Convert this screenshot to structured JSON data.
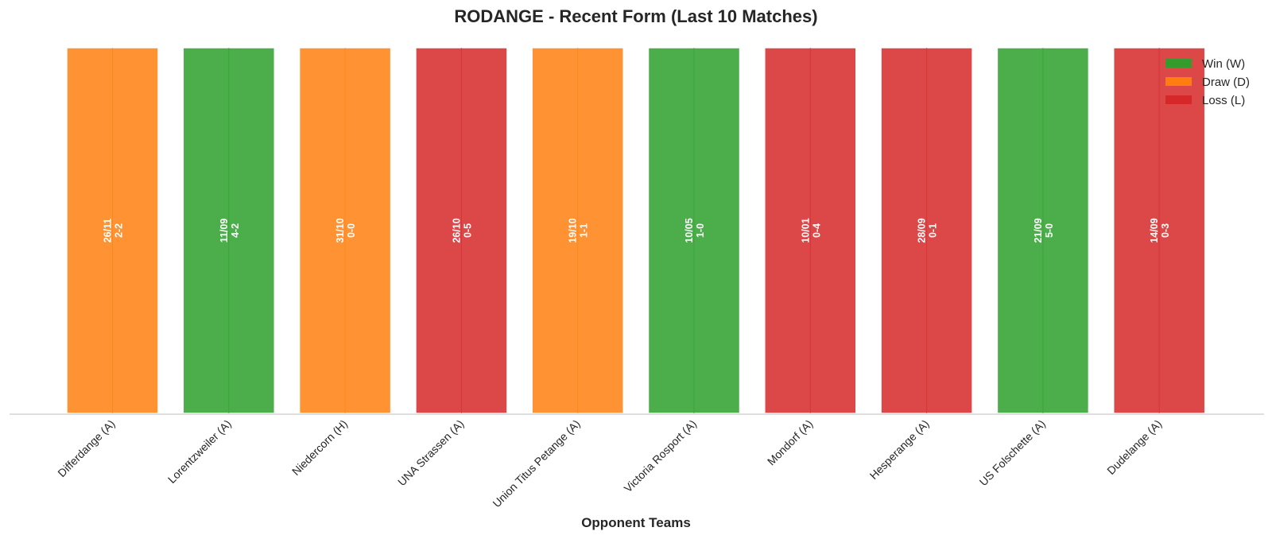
{
  "colors": {
    "W": "#2ca02c",
    "D": "#ff7f0e",
    "L": "#d62728"
  },
  "chart_data": {
    "type": "bar",
    "title": "RODANGE - Recent Form (Last 10 Matches)",
    "xlabel": "Opponent Teams",
    "ylabel": "",
    "ylim": [
      0,
      1
    ],
    "grid": false,
    "legend_position": "top-right",
    "legend": [
      {
        "key": "W",
        "label": "Win (W)"
      },
      {
        "key": "D",
        "label": "Draw (D)"
      },
      {
        "key": "L",
        "label": "Loss (L)"
      }
    ],
    "categories": [
      "Differdange (A)",
      "Lorentzweiler (A)",
      "Niedercorn (H)",
      "UNA Strassen (A)",
      "Union Titus Petange (A)",
      "Victoria Rosport (A)",
      "Mondorf (A)",
      "Hesperange (A)",
      "US Folschette (A)",
      "Dudelange (A)"
    ],
    "values": [
      1,
      1,
      1,
      1,
      1,
      1,
      1,
      1,
      1,
      1
    ],
    "results": [
      "D",
      "W",
      "D",
      "L",
      "D",
      "W",
      "L",
      "L",
      "W",
      "L"
    ],
    "dates": [
      "26/11",
      "11/09",
      "31/10",
      "26/10",
      "19/10",
      "10/05",
      "10/01",
      "28/09",
      "21/09",
      "14/09"
    ],
    "scores": [
      "2-2",
      "4-2",
      "0-0",
      "0-5",
      "1-1",
      "1-0",
      "0-4",
      "0-1",
      "5-0",
      "0-3"
    ]
  }
}
